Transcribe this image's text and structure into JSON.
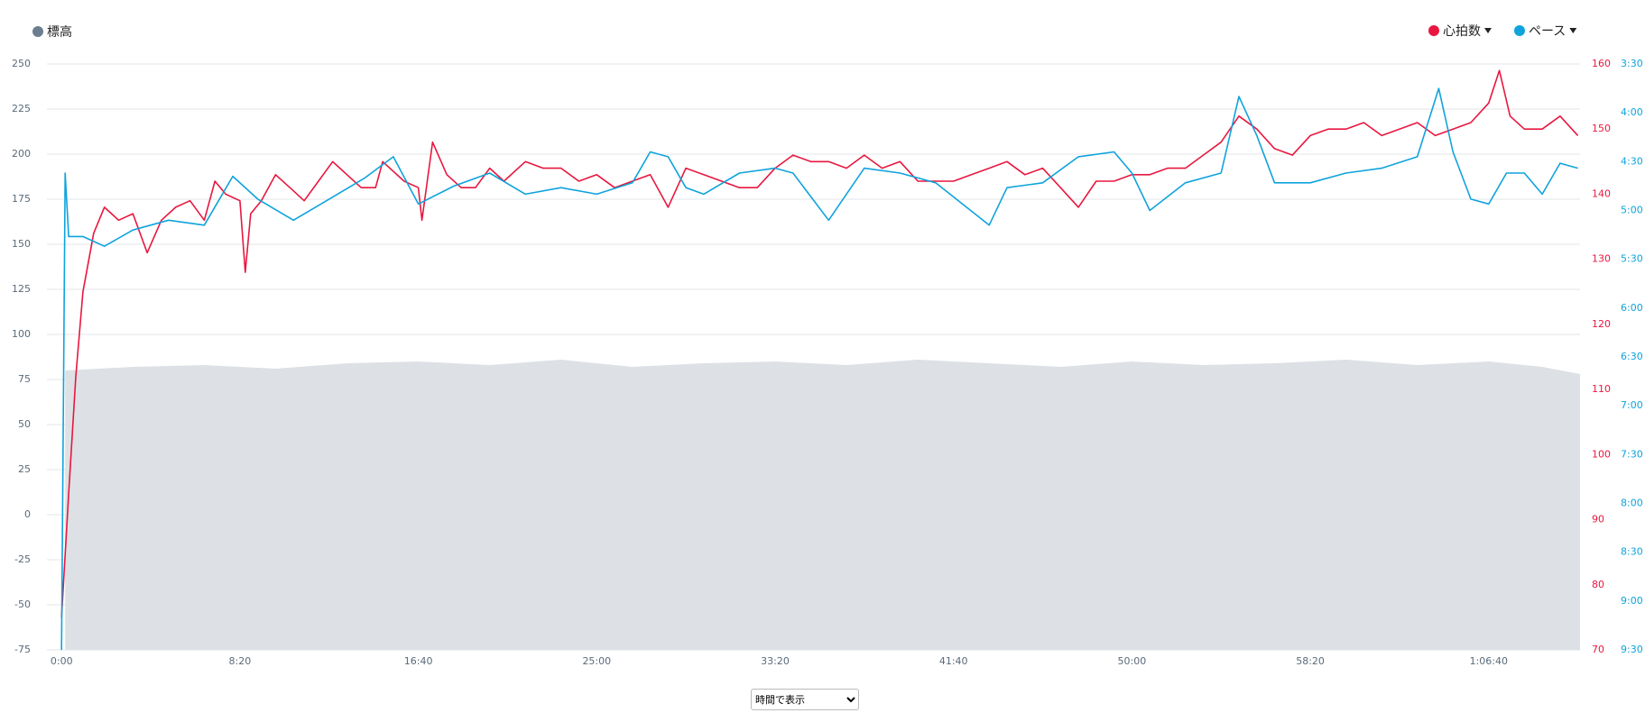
{
  "chart_data": {
    "type": "line",
    "xlim": [
      -41,
      4256
    ],
    "xticks": [
      {
        "value": 0,
        "label": "0:00"
      },
      {
        "value": 500,
        "label": "8:20"
      },
      {
        "value": 1000,
        "label": "16:40"
      },
      {
        "value": 1500,
        "label": "25:00"
      },
      {
        "value": 2000,
        "label": "33:20"
      },
      {
        "value": 2500,
        "label": "41:40"
      },
      {
        "value": 3000,
        "label": "50:00"
      },
      {
        "value": 3500,
        "label": "58:20"
      },
      {
        "value": 4000,
        "label": "1:06:40"
      }
    ],
    "ylim": [
      -75,
      250
    ],
    "yticks": [
      -75,
      -50,
      -25,
      0,
      25,
      50,
      75,
      100,
      125,
      150,
      175,
      200,
      225,
      250
    ],
    "y2lim": [
      70,
      160
    ],
    "y2ticks": [
      70,
      80,
      90,
      100,
      110,
      120,
      130,
      140,
      150,
      160
    ],
    "y3lim": [
      570,
      210
    ],
    "y3ticks": [
      {
        "value": 210,
        "label": "3:30"
      },
      {
        "value": 240,
        "label": "4:00"
      },
      {
        "value": 270,
        "label": "4:30"
      },
      {
        "value": 300,
        "label": "5:00"
      },
      {
        "value": 330,
        "label": "5:30"
      },
      {
        "value": 360,
        "label": "6:00"
      },
      {
        "value": 390,
        "label": "6:30"
      },
      {
        "value": 420,
        "label": "7:00"
      },
      {
        "value": 450,
        "label": "7:30"
      },
      {
        "value": 480,
        "label": "8:00"
      },
      {
        "value": 510,
        "label": "8:30"
      },
      {
        "value": 540,
        "label": "9:00"
      },
      {
        "value": 570,
        "label": "9:30"
      }
    ],
    "grid": true,
    "series": [
      {
        "name": "標高",
        "type": "area",
        "axis": "y",
        "color": "#6b7e8f",
        "fill": "#dde1e5",
        "x": [
          10,
          200,
          400,
          600,
          800,
          1000,
          1200,
          1400,
          1600,
          1800,
          2000,
          2200,
          2400,
          2600,
          2800,
          3000,
          3200,
          3400,
          3600,
          3800,
          4000,
          4150,
          4256
        ],
        "values": [
          80,
          82,
          83,
          81,
          84,
          85,
          83,
          86,
          82,
          84,
          85,
          83,
          86,
          84,
          82,
          85,
          83,
          84,
          86,
          83,
          85,
          82,
          78
        ]
      },
      {
        "name": "心拍数",
        "axis": "y2",
        "color": "#e8173f",
        "x": [
          0,
          20,
          40,
          60,
          90,
          120,
          160,
          200,
          240,
          280,
          320,
          360,
          400,
          430,
          460,
          500,
          515,
          530,
          560,
          600,
          640,
          680,
          720,
          760,
          800,
          840,
          880,
          900,
          960,
          1000,
          1010,
          1040,
          1080,
          1120,
          1160,
          1200,
          1240,
          1300,
          1350,
          1400,
          1450,
          1500,
          1550,
          1600,
          1650,
          1700,
          1750,
          1800,
          1850,
          1900,
          1950,
          2000,
          2050,
          2100,
          2150,
          2200,
          2250,
          2300,
          2350,
          2400,
          2450,
          2500,
          2550,
          2600,
          2650,
          2700,
          2750,
          2800,
          2850,
          2900,
          2950,
          3000,
          3050,
          3100,
          3150,
          3200,
          3250,
          3300,
          3350,
          3400,
          3450,
          3500,
          3550,
          3600,
          3650,
          3700,
          3750,
          3800,
          3850,
          3900,
          3950,
          4000,
          4030,
          4060,
          4100,
          4150,
          4200,
          4250
        ],
        "values": [
          75,
          94,
          112,
          125,
          134,
          138,
          136,
          137,
          131,
          136,
          138,
          139,
          136,
          142,
          140,
          139,
          128,
          137,
          139,
          143,
          141,
          139,
          142,
          145,
          143,
          141,
          141,
          145,
          142,
          141,
          136,
          148,
          143,
          141,
          141,
          144,
          142,
          145,
          144,
          144,
          142,
          143,
          141,
          142,
          143,
          138,
          144,
          143,
          142,
          141,
          141,
          144,
          146,
          145,
          145,
          144,
          146,
          144,
          145,
          142,
          142,
          142,
          143,
          144,
          145,
          143,
          144,
          141,
          138,
          142,
          142,
          143,
          143,
          144,
          144,
          146,
          148,
          152,
          150,
          147,
          146,
          149,
          150,
          150,
          151,
          149,
          150,
          151,
          149,
          150,
          151,
          154,
          159,
          152,
          150,
          150,
          152,
          149
        ]
      },
      {
        "name": "ペース",
        "axis": "y3",
        "color": "#0fa3dc",
        "x": [
          0,
          10,
          20,
          60,
          120,
          200,
          300,
          400,
          480,
          550,
          650,
          750,
          850,
          930,
          1000,
          1100,
          1200,
          1300,
          1400,
          1500,
          1600,
          1650,
          1700,
          1750,
          1800,
          1900,
          2000,
          2050,
          2150,
          2250,
          2350,
          2450,
          2600,
          2650,
          2750,
          2850,
          2950,
          3000,
          3050,
          3150,
          3250,
          3300,
          3350,
          3400,
          3500,
          3600,
          3700,
          3800,
          3860,
          3900,
          3950,
          4000,
          4050,
          4100,
          4150,
          4200,
          4250
        ],
        "values": [
          570,
          277,
          316,
          316,
          322,
          312,
          306,
          309,
          279,
          293,
          306,
          293,
          280,
          267,
          296,
          285,
          277,
          290,
          286,
          290,
          283,
          264,
          267,
          286,
          290,
          277,
          274,
          277,
          306,
          274,
          277,
          283,
          309,
          286,
          283,
          267,
          264,
          277,
          300,
          283,
          277,
          230,
          254,
          283,
          283,
          277,
          274,
          267,
          225,
          264,
          293,
          296,
          277,
          277,
          290,
          271,
          274
        ]
      }
    ]
  },
  "controls": {
    "view_select": "時間で表示"
  }
}
